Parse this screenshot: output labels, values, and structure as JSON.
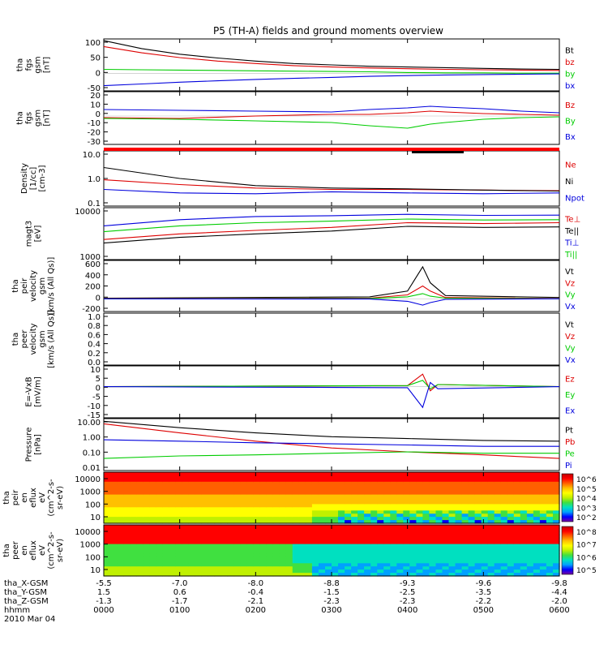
{
  "title": "P5 (TH-A) fields and ground moments overview",
  "chart_data": {
    "type": "line",
    "title": "P5 (TH-A) fields and ground moments overview",
    "x_axis": {
      "label": "hhmm",
      "date": "2010 Mar 04",
      "ticks": [
        "0000",
        "0100",
        "0200",
        "0300",
        "0400",
        "0500",
        "0600"
      ],
      "extra_rows": [
        {
          "label": "tha_X-GSM",
          "values": [
            "-5.5",
            "-7.0",
            "-8.0",
            "-8.8",
            "-9.3",
            "-9.6",
            "-9.8"
          ]
        },
        {
          "label": "tha_Y-GSM",
          "values": [
            "1.5",
            "0.6",
            "-0.4",
            "-1.5",
            "-2.5",
            "-3.5",
            "-4.4"
          ]
        },
        {
          "label": "tha_Z-GSM",
          "values": [
            "-1.3",
            "-1.7",
            "-2.1",
            "-2.3",
            "-2.3",
            "-2.2",
            "-2.0"
          ]
        }
      ]
    },
    "panels": [
      {
        "id": "fgs_gsm",
        "ylabel": [
          "tha",
          "fgs",
          "gsm",
          "[nT]"
        ],
        "ylim": [
          -50,
          100
        ],
        "yticks": [
          "100",
          "50",
          "0",
          "-50"
        ],
        "series": [
          {
            "name": "Bt",
            "color": "#000000",
            "x": [
              0,
              0.5,
              1,
              1.5,
              2,
              2.5,
              3,
              3.5,
              4,
              4.5,
              5,
              5.5,
              6
            ],
            "y": [
              95,
              72,
              56,
              45,
              36,
              29,
              25,
              21,
              19,
              17,
              15,
              13,
              12
            ]
          },
          {
            "name": "bz",
            "color": "#dd0000",
            "x": [
              0,
              0.5,
              1,
              1.5,
              2,
              2.5,
              3,
              3.5,
              4,
              4.5,
              5,
              5.5,
              6
            ],
            "y": [
              78,
              60,
              46,
              36,
              29,
              23,
              19,
              16,
              14,
              12,
              11,
              10,
              9
            ]
          },
          {
            "name": "by",
            "color": "#00cc00",
            "x": [
              0,
              0.5,
              1,
              1.5,
              2,
              2.5,
              3,
              3.5,
              4,
              4.5,
              5,
              5.5,
              6
            ],
            "y": [
              12,
              11,
              10,
              9,
              8,
              7,
              6,
              5,
              3,
              2,
              2,
              1,
              1
            ]
          },
          {
            "name": "bx",
            "color": "#0000dd",
            "x": [
              0,
              0.5,
              1,
              1.5,
              2,
              2.5,
              3,
              3.5,
              4,
              4.5,
              5,
              5.5,
              6
            ],
            "y": [
              -35,
              -30,
              -25,
              -21,
              -17,
              -14,
              -11,
              -8,
              -6,
              -4,
              -3,
              -2,
              -1
            ]
          }
        ]
      },
      {
        "id": "fgs_gsm_dsl",
        "ylabel": [
          "tha",
          "fgs",
          "gsm",
          "[nT]"
        ],
        "ylim": [
          -35,
          30
        ],
        "yticks": [
          "20",
          "10",
          "0",
          "-10",
          "-20",
          "-30"
        ],
        "series": [
          {
            "name": "Bz",
            "color": "#dd0000",
            "x": [
              0,
              1,
              2,
              3,
              3.5,
              4,
              4.3,
              4.5,
              5,
              5.5,
              6
            ],
            "y": [
              -2,
              -3,
              0,
              2,
              2,
              4,
              6,
              5,
              3,
              2,
              1
            ]
          },
          {
            "name": "By",
            "color": "#00cc00",
            "x": [
              0,
              1,
              2,
              3,
              3.5,
              4,
              4.3,
              4.5,
              5,
              5.5,
              6
            ],
            "y": [
              -3,
              -4,
              -6,
              -8,
              -12,
              -15,
              -10,
              -8,
              -4,
              -2,
              -1
            ]
          },
          {
            "name": "Bx",
            "color": "#0000dd",
            "x": [
              0,
              1,
              2,
              3,
              3.5,
              4,
              4.3,
              4.5,
              5,
              5.5,
              6
            ],
            "y": [
              8,
              7,
              6,
              5,
              8,
              10,
              12,
              11,
              9,
              6,
              4
            ]
          }
        ]
      },
      {
        "id": "density",
        "ylabel": [
          "Density",
          "[1/cc]",
          "[cm-3]"
        ],
        "yscale": "log",
        "ylim": [
          0.1,
          10
        ],
        "yticks": [
          "10.0",
          "1.0",
          "0.1"
        ],
        "series": [
          {
            "name": "Ne",
            "color": "#dd0000",
            "x": [
              0,
              1,
              2,
              3,
              4,
              5,
              6
            ],
            "y": [
              0.9,
              0.6,
              0.45,
              0.4,
              0.4,
              0.38,
              0.36
            ]
          },
          {
            "name": "Ni",
            "color": "#000000",
            "x": [
              0,
              1,
              2,
              3,
              4,
              5,
              6
            ],
            "y": [
              2.5,
              1.0,
              0.55,
              0.45,
              0.42,
              0.38,
              0.35
            ]
          },
          {
            "name": "Npot",
            "color": "#0000dd",
            "x": [
              0,
              1,
              2,
              3,
              4,
              5,
              6
            ],
            "y": [
              0.4,
              0.3,
              0.28,
              0.33,
              0.3,
              0.28,
              0.3
            ]
          }
        ]
      },
      {
        "id": "temperature",
        "ylabel": [
          "magt3",
          "[eV]"
        ],
        "yscale": "log",
        "ylim": [
          500,
          10000
        ],
        "yticks": [
          "10000",
          "1000"
        ],
        "series": [
          {
            "name": "Te⊥",
            "color": "#dd0000",
            "x": [
              0,
              1,
              2,
              3,
              4,
              5,
              6
            ],
            "y": [
              1600,
              2200,
              2700,
              3200,
              4200,
              4000,
              4200
            ]
          },
          {
            "name": "Te||",
            "color": "#000000",
            "x": [
              0,
              1,
              2,
              3,
              4,
              5,
              6
            ],
            "y": [
              1300,
              1800,
              2200,
              2600,
              3400,
              3200,
              3300
            ]
          },
          {
            "name": "Ti⊥",
            "color": "#0000dd",
            "x": [
              0,
              1,
              2,
              3,
              4,
              5,
              6
            ],
            "y": [
              3500,
              5000,
              6000,
              6300,
              6800,
              6400,
              6500
            ]
          },
          {
            "name": "Ti||",
            "color": "#00cc00",
            "x": [
              0,
              1,
              2,
              3,
              4,
              5,
              6
            ],
            "y": [
              2500,
              3500,
              4200,
              4600,
              5200,
              4900,
              5000
            ]
          }
        ]
      },
      {
        "id": "peir_velocity",
        "ylabel": [
          "tha",
          "peir",
          "velocity",
          "gsm",
          "[km/s (All Qs)]"
        ],
        "ylim": [
          -200,
          600
        ],
        "yticks": [
          "600",
          "400",
          "200",
          "0",
          "-200"
        ],
        "series": [
          {
            "name": "Vt",
            "color": "#000000",
            "x": [
              0,
              3.5,
              4.0,
              4.2,
              4.3,
              4.5,
              6
            ],
            "y": [
              10,
              30,
              120,
              500,
              250,
              50,
              20
            ]
          },
          {
            "name": "Vz",
            "color": "#dd0000",
            "x": [
              0,
              3.5,
              4.0,
              4.2,
              4.3,
              4.5,
              6
            ],
            "y": [
              5,
              10,
              60,
              200,
              120,
              20,
              5
            ]
          },
          {
            "name": "Vy",
            "color": "#00cc00",
            "x": [
              0,
              3.5,
              4.0,
              4.2,
              4.3,
              4.5,
              6
            ],
            "y": [
              0,
              5,
              30,
              80,
              40,
              10,
              0
            ]
          },
          {
            "name": "Vx",
            "color": "#0000dd",
            "x": [
              0,
              3.5,
              4.0,
              4.2,
              4.3,
              4.5,
              6
            ],
            "y": [
              0,
              -5,
              -40,
              -100,
              -60,
              -10,
              0
            ]
          }
        ]
      },
      {
        "id": "peer_velocity",
        "ylabel": [
          "tha",
          "peer",
          "velocity",
          "gsm",
          "[km/s (All Qs)]"
        ],
        "ylim": [
          0,
          1.0
        ],
        "yticks": [
          "1.0",
          "0.8",
          "0.6",
          "0.4",
          "0.2",
          "0.0"
        ],
        "series": [
          {
            "name": "Vt",
            "color": "#000000",
            "x": [],
            "y": []
          },
          {
            "name": "Vz",
            "color": "#dd0000",
            "x": [],
            "y": []
          },
          {
            "name": "Vy",
            "color": "#00cc00",
            "x": [],
            "y": []
          },
          {
            "name": "Vx",
            "color": "#0000dd",
            "x": [],
            "y": []
          }
        ]
      },
      {
        "id": "efield",
        "ylabel": [
          "E=-VxB",
          "[mV/m]"
        ],
        "ylim": [
          -15,
          10
        ],
        "yticks": [
          "10",
          "5",
          "0",
          "-5",
          "-10",
          "-15"
        ],
        "series": [
          {
            "name": "Ez",
            "color": "#dd0000",
            "x": [
              0,
              4.0,
              4.2,
              4.3,
              4.4,
              6
            ],
            "y": [
              0,
              0.5,
              6,
              -2,
              1,
              0
            ]
          },
          {
            "name": "Ey",
            "color": "#00cc00",
            "x": [
              0,
              4.0,
              4.2,
              4.3,
              4.4,
              6
            ],
            "y": [
              0,
              0.5,
              3,
              -1,
              1,
              0
            ]
          },
          {
            "name": "Ex",
            "color": "#0000dd",
            "x": [
              0,
              4.0,
              4.2,
              4.3,
              4.4,
              6
            ],
            "y": [
              0,
              -0.5,
              -10,
              2,
              -1,
              0
            ]
          }
        ]
      },
      {
        "id": "pressure",
        "ylabel": [
          "Pressure",
          "[nPa]"
        ],
        "yscale": "log",
        "ylim": [
          0.01,
          10
        ],
        "yticks": [
          "10.00",
          "1.00",
          "0.10",
          "0.01"
        ],
        "series": [
          {
            "name": "Pt",
            "color": "#000000",
            "x": [
              0,
              1,
              2,
              3,
              4,
              5,
              6
            ],
            "y": [
              7,
              3,
              1.5,
              0.9,
              0.7,
              0.55,
              0.5
            ]
          },
          {
            "name": "Pb",
            "color": "#dd0000",
            "x": [
              0,
              1,
              2,
              3,
              4,
              5,
              6
            ],
            "y": [
              5,
              1.5,
              0.5,
              0.2,
              0.12,
              0.08,
              0.05
            ]
          },
          {
            "name": "Pe",
            "color": "#00cc00",
            "x": [
              0,
              1,
              2,
              3,
              4,
              5,
              6
            ],
            "y": [
              0.05,
              0.07,
              0.08,
              0.1,
              0.12,
              0.1,
              0.1
            ]
          },
          {
            "name": "Pi",
            "color": "#0000dd",
            "x": [
              0,
              1,
              2,
              3,
              4,
              5,
              6
            ],
            "y": [
              0.6,
              0.5,
              0.4,
              0.35,
              0.3,
              0.25,
              0.25
            ]
          }
        ]
      }
    ],
    "spectrograms": [
      {
        "id": "peir_en_eflux",
        "type": "heatmap",
        "ylabel": [
          "tha",
          "peir",
          "en",
          "eflux",
          "eV",
          "(cm^2-s-",
          "sr-eV)"
        ],
        "yscale": "log",
        "yticks": [
          "10000",
          "1000",
          "100",
          "10"
        ],
        "colorbar": {
          "labels": [
            "10^6",
            "10^5",
            "10^4",
            "10^3",
            "10^2"
          ]
        }
      },
      {
        "id": "peer_en_eflux",
        "type": "heatmap",
        "ylabel": [
          "tha",
          "peer",
          "en",
          "eflux",
          "eV",
          "(cm^2-s-",
          "sr-eV)"
        ],
        "yscale": "log",
        "yticks": [
          "10000",
          "1000",
          "100",
          "10"
        ],
        "colorbar": {
          "labels": [
            "10^8",
            "10^7",
            "10^6",
            "10^5"
          ]
        }
      }
    ]
  }
}
